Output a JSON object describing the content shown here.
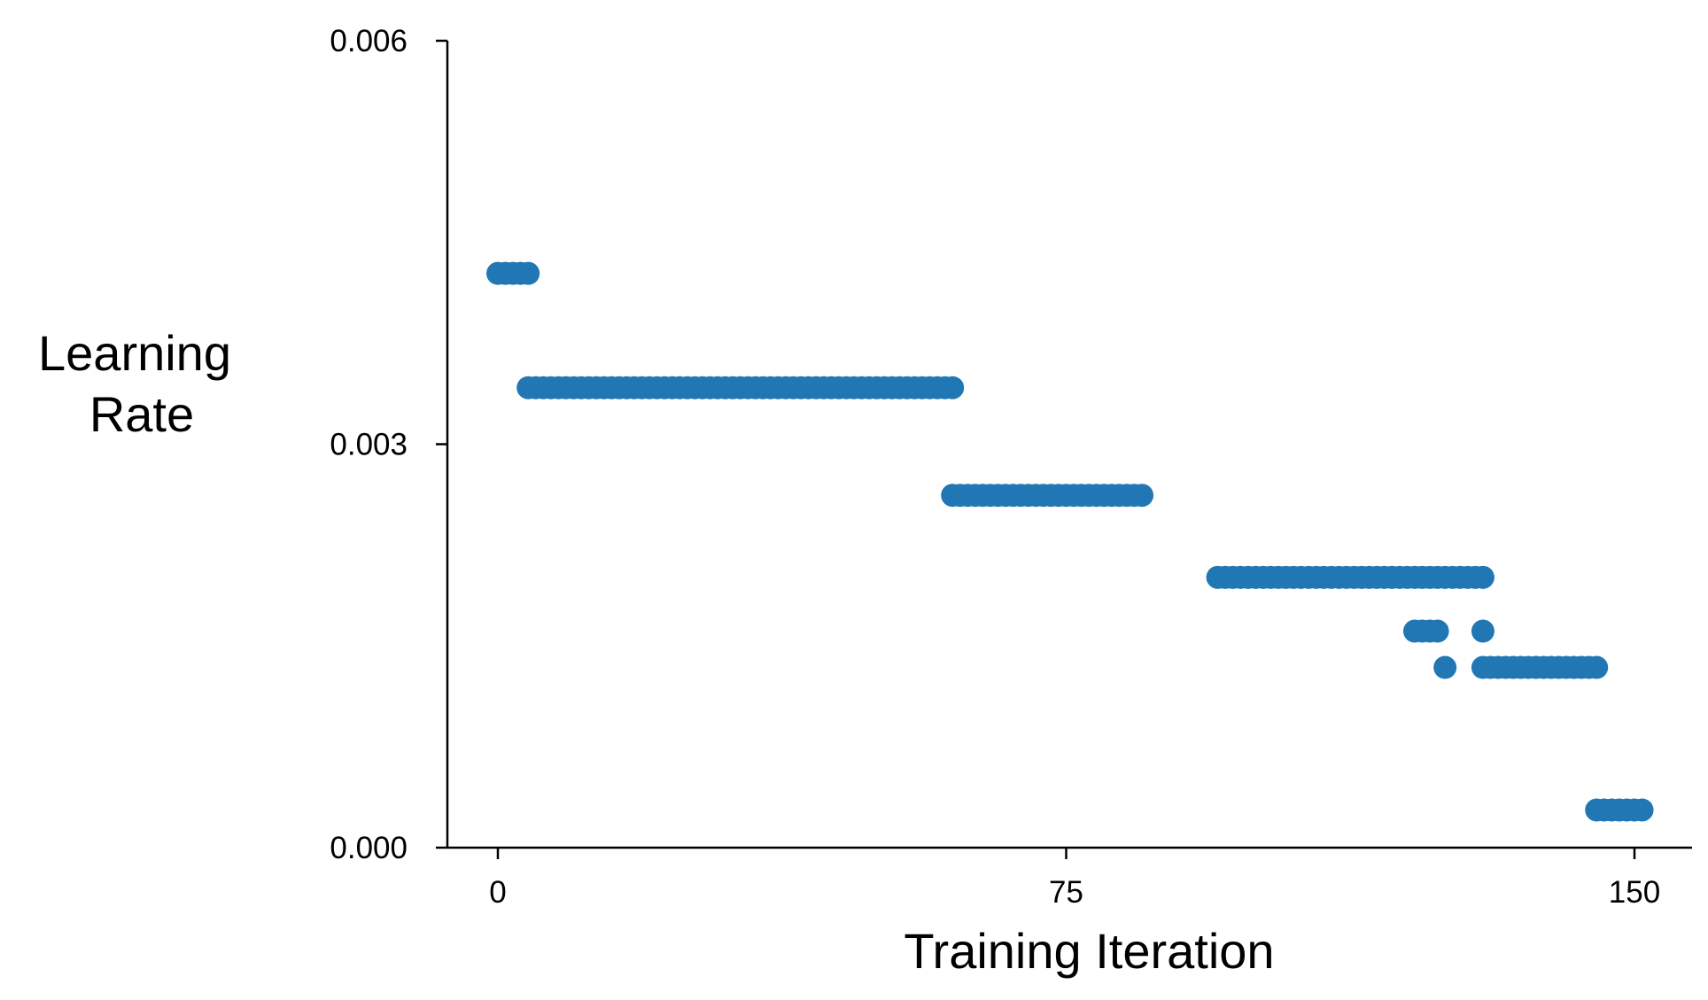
{
  "chart_data": {
    "type": "scatter",
    "xlabel": "Training Iteration",
    "ylabel_lines": [
      "Learning",
      "Rate"
    ],
    "xlim": [
      -7,
      157
    ],
    "ylim": [
      0,
      0.006
    ],
    "xticks": [
      0,
      75,
      150
    ],
    "xtick_labels": [
      "0",
      "75",
      "150"
    ],
    "yticks": [
      0,
      0.003,
      0.006
    ],
    "ytick_labels": [
      "0.000",
      "0.003",
      "0.006"
    ],
    "grid": false,
    "marker_color": "#2177b4",
    "series": [
      {
        "runs": [
          {
            "x_start": 0,
            "x_end": 4,
            "y": 0.00427
          },
          {
            "x_start": 4,
            "x_end": 60,
            "y": 0.00342
          },
          {
            "x_start": 60,
            "x_end": 85,
            "y": 0.00262
          },
          {
            "x_start": 95,
            "x_end": 130,
            "y": 0.00201
          },
          {
            "x_start": 121,
            "x_end": 124,
            "y": 0.00161
          },
          {
            "x_start": 125,
            "x_end": 125,
            "y": 0.00134
          },
          {
            "x_start": 130,
            "x_end": 130,
            "y": 0.00161
          },
          {
            "x_start": 130,
            "x_end": 145,
            "y": 0.00134
          },
          {
            "x_start": 145,
            "x_end": 151,
            "y": 0.00028
          }
        ]
      }
    ]
  }
}
